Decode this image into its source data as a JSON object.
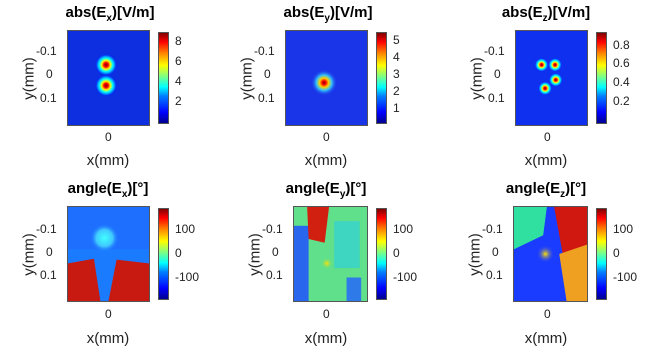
{
  "chart_data": [
    {
      "type": "heatmap",
      "title_main": "abs(E",
      "title_sub": "x",
      "title_tail": ")[V/m]",
      "xlabel": "x(mm)",
      "ylabel": "y(mm)",
      "xticks": [
        "0"
      ],
      "yticks": [
        "-0.1",
        "0",
        "0.1"
      ],
      "colorbar": [
        "8",
        "6",
        "4",
        "2"
      ],
      "clim": [
        1,
        9
      ]
    },
    {
      "type": "heatmap",
      "title_main": "abs(E",
      "title_sub": "y",
      "title_tail": ")[V/m]",
      "xlabel": "x(mm)",
      "ylabel": "y(mm)",
      "xticks": [
        "0"
      ],
      "yticks": [
        "-0.1",
        "0",
        "0.1"
      ],
      "colorbar": [
        "5",
        "4",
        "3",
        "2",
        "1"
      ],
      "clim": [
        0.5,
        5.5
      ]
    },
    {
      "type": "heatmap",
      "title_main": "abs(E",
      "title_sub": "z",
      "title_tail": ")[V/m]",
      "xlabel": "x(mm)",
      "ylabel": "y(mm)",
      "xticks": [
        "0"
      ],
      "yticks": [
        "-0.1",
        "0",
        "0.1"
      ],
      "colorbar": [
        "0.8",
        "0.6",
        "0.4",
        "0.2"
      ],
      "clim": [
        0.1,
        0.9
      ]
    },
    {
      "type": "heatmap",
      "title_main": "angle(E",
      "title_sub": "x",
      "title_tail": ")[°]",
      "xlabel": "x(mm)",
      "ylabel": "y(mm)",
      "xticks": [
        "0"
      ],
      "yticks": [
        "-0.1",
        "0",
        "0.1"
      ],
      "colorbar": [
        "100",
        "0",
        "-100"
      ],
      "clim": [
        -180,
        180
      ]
    },
    {
      "type": "heatmap",
      "title_main": "angle(E",
      "title_sub": "y",
      "title_tail": ")[°]",
      "xlabel": "x(mm)",
      "ylabel": "y(mm)",
      "xticks": [
        "0"
      ],
      "yticks": [
        "-0.1",
        "0",
        "0.1"
      ],
      "colorbar": [
        "100",
        "0",
        "-100"
      ],
      "clim": [
        -180,
        180
      ]
    },
    {
      "type": "heatmap",
      "title_main": "angle(E",
      "title_sub": "z",
      "title_tail": ")[°]",
      "xlabel": "x(mm)",
      "ylabel": "y(mm)",
      "xticks": [
        "0"
      ],
      "yticks": [
        "-0.1",
        "0",
        "0.1"
      ],
      "colorbar": [
        "100",
        "0",
        "-100"
      ],
      "clim": [
        -180,
        180
      ]
    }
  ]
}
